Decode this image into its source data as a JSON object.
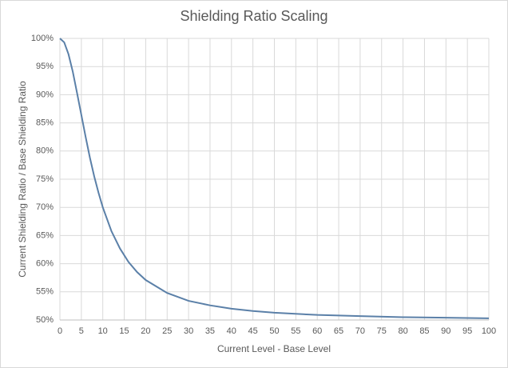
{
  "chart_data": {
    "type": "line",
    "title": "Shielding Ratio Scaling",
    "x_label": "Current Level - Base Level",
    "y_label": "Current Shielding Ratio / Base Shielding Ratio",
    "x": [
      0,
      1,
      2,
      3,
      4,
      5,
      6,
      7,
      8,
      9,
      10,
      12,
      14,
      16,
      18,
      20,
      25,
      30,
      35,
      40,
      45,
      50,
      60,
      70,
      80,
      90,
      100
    ],
    "series": [
      {
        "name": "Shielding Ratio",
        "color": "#5b80a8",
        "values": [
          100,
          99.3,
          97.2,
          94.1,
          90.3,
          86.4,
          82.5,
          78.8,
          75.5,
          72.6,
          70.0,
          65.8,
          62.7,
          60.3,
          58.5,
          57.1,
          54.8,
          53.4,
          52.6,
          52.0,
          51.6,
          51.3,
          50.9,
          50.7,
          50.5,
          50.4,
          50.3
        ]
      }
    ],
    "xlim": [
      0,
      100
    ],
    "xticks": [
      0,
      5,
      10,
      15,
      20,
      25,
      30,
      35,
      40,
      45,
      50,
      55,
      60,
      65,
      70,
      75,
      80,
      85,
      90,
      95,
      100
    ],
    "ylim": [
      50,
      100
    ],
    "yticks": [
      {
        "value": 50,
        "label": "50%"
      },
      {
        "value": 55,
        "label": "55%"
      },
      {
        "value": 60,
        "label": "60%"
      },
      {
        "value": 65,
        "label": "65%"
      },
      {
        "value": 70,
        "label": "70%"
      },
      {
        "value": 75,
        "label": "75%"
      },
      {
        "value": 80,
        "label": "80%"
      },
      {
        "value": 85,
        "label": "85%"
      },
      {
        "value": 90,
        "label": "90%"
      },
      {
        "value": 95,
        "label": "95%"
      },
      {
        "value": 100,
        "label": "100%"
      }
    ],
    "grid": true
  }
}
